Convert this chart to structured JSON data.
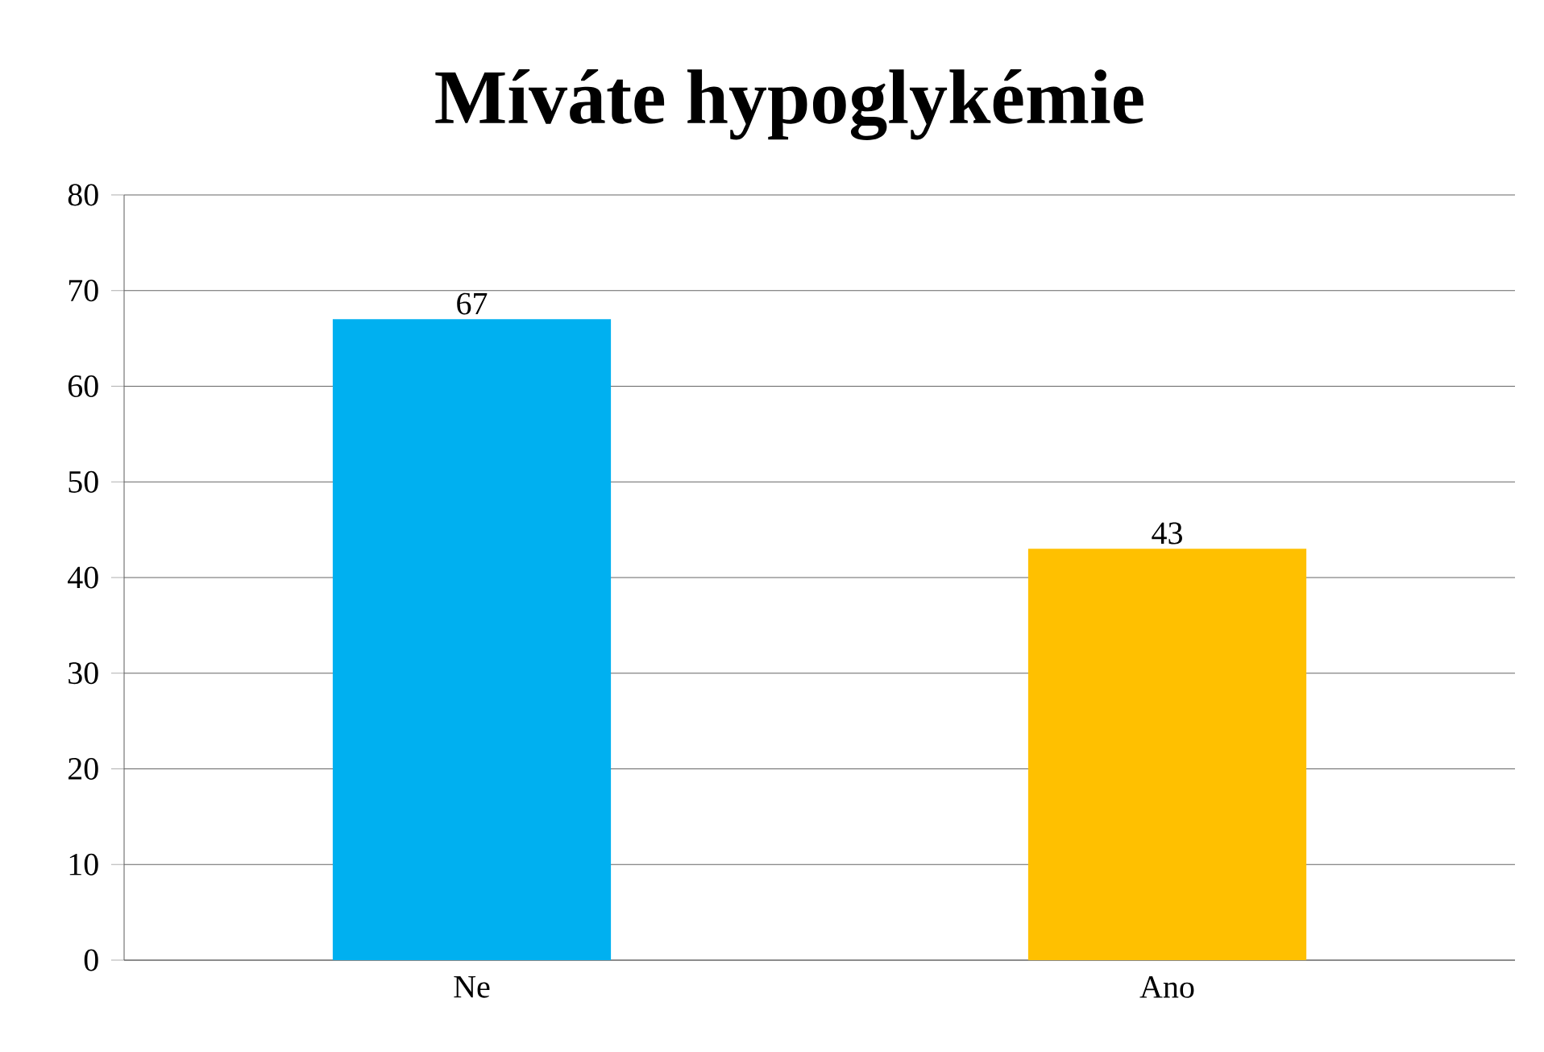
{
  "chart_data": {
    "type": "bar",
    "title": "Míváte hypoglykémie",
    "categories": [
      "Ne",
      "Ano"
    ],
    "values": [
      67,
      43
    ],
    "colors": [
      "#00b0f0",
      "#ffc000"
    ],
    "ylim": [
      0,
      80
    ],
    "yticks": [
      0,
      10,
      20,
      30,
      40,
      50,
      60,
      70,
      80
    ],
    "grid": "y",
    "data_labels": true
  }
}
